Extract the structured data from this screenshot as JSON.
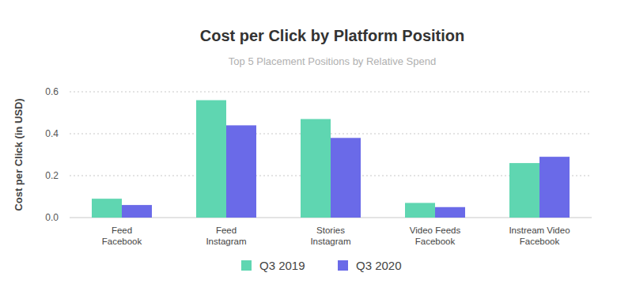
{
  "chart_data": {
    "type": "bar",
    "title": "Cost per Click by Platform Position",
    "subtitle": "Top 5 Placement Positions by Relative Spend",
    "y_label": "Cost per Click (in USD)",
    "categories": [
      "Feed Facebook",
      "Feed Instagram",
      "Stories Instagram",
      "Video Feeds Facebook",
      "Instream Video Facebook"
    ],
    "series": [
      {
        "name": "Q3 2019",
        "color": "#5fd6b1",
        "values": [
          0.09,
          0.56,
          0.47,
          0.07,
          0.26
        ]
      },
      {
        "name": "Q3 2020",
        "color": "#6a6ae8",
        "values": [
          0.06,
          0.44,
          0.38,
          0.05,
          0.29
        ]
      }
    ],
    "ylim": [
      0,
      0.6
    ],
    "yticks": [
      {
        "value": 0,
        "label": "0.0"
      },
      0.2,
      0.4,
      0.6
    ],
    "grid": true,
    "legend": "bottom"
  }
}
